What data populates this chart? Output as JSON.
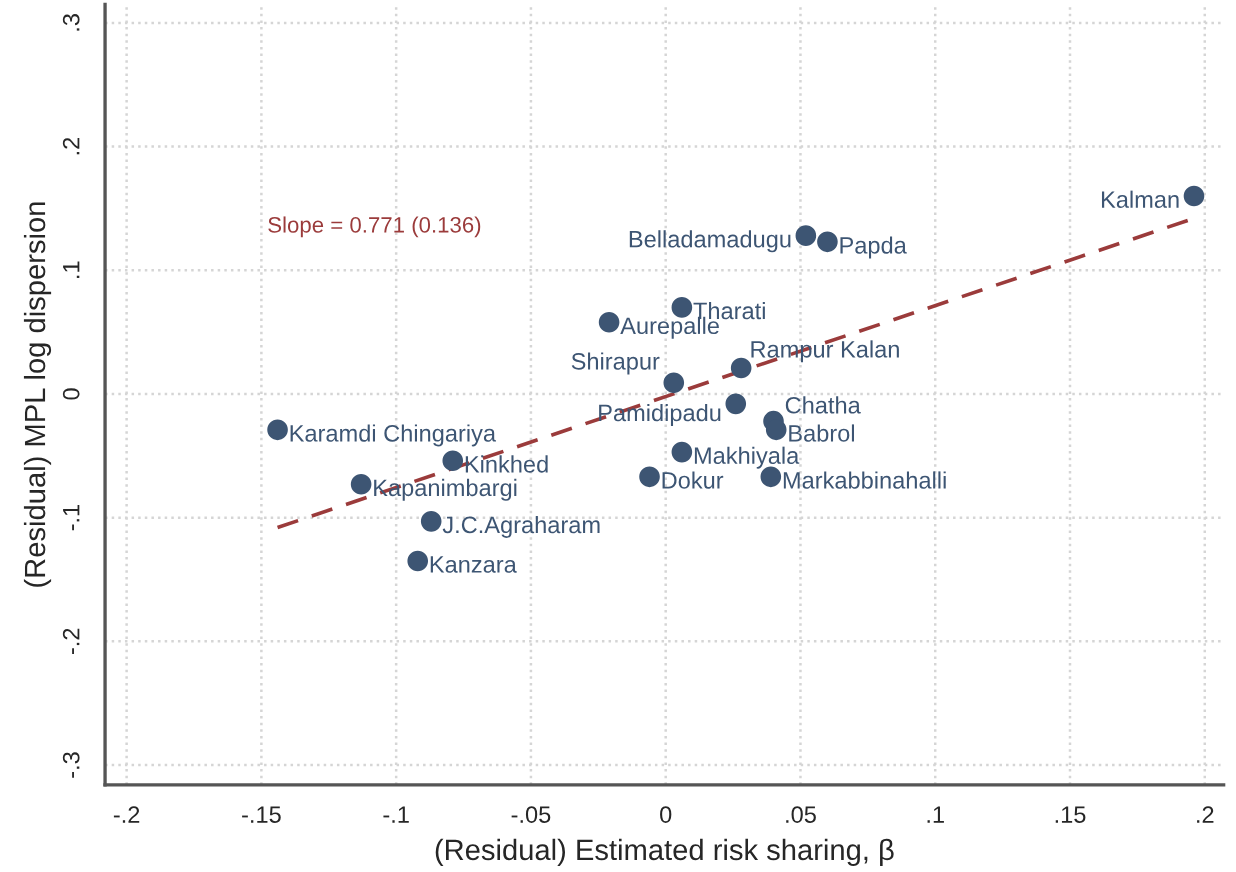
{
  "chart_data": {
    "type": "scatter",
    "xlabel": "(Residual) Estimated risk sharing, β",
    "ylabel": "(Residual) MPL log dispersion",
    "xlim": [
      -0.208,
      0.207
    ],
    "ylim": [
      -0.316,
      0.315
    ],
    "xticks": [
      {
        "value": -0.2,
        "label": "-.2"
      },
      {
        "value": -0.15,
        "label": "-.15"
      },
      {
        "value": -0.1,
        "label": "-.1"
      },
      {
        "value": -0.05,
        "label": "-.05"
      },
      {
        "value": 0,
        "label": "0"
      },
      {
        "value": 0.05,
        "label": ".05"
      },
      {
        "value": 0.1,
        "label": ".1"
      },
      {
        "value": 0.15,
        "label": ".15"
      },
      {
        "value": 0.2,
        "label": ".2"
      }
    ],
    "yticks": [
      {
        "value": -0.3,
        "label": "-.3"
      },
      {
        "value": -0.2,
        "label": "-.2"
      },
      {
        "value": -0.1,
        "label": "-.1"
      },
      {
        "value": 0,
        "label": "0"
      },
      {
        "value": 0.1,
        "label": ".1"
      },
      {
        "value": 0.2,
        "label": ".2"
      },
      {
        "value": 0.3,
        "label": ".3"
      }
    ],
    "grid": true,
    "marker": "circle",
    "series": [
      {
        "color": "#3d5573",
        "x": [
          0.196,
          0.052,
          0.06,
          0.006,
          -0.021,
          0.003,
          0.028,
          0.026,
          0.04,
          0.041,
          0.006,
          -0.006,
          0.039,
          -0.144,
          -0.079,
          -0.113,
          -0.087,
          -0.092
        ],
        "values": [
          0.16,
          0.128,
          0.123,
          0.07,
          0.058,
          0.009,
          0.021,
          -0.008,
          -0.022,
          -0.029,
          -0.047,
          -0.067,
          -0.067,
          -0.029,
          -0.054,
          -0.073,
          -0.103,
          -0.135
        ],
        "value_labels": [
          "Kalman",
          "Belladamadugu",
          "Papda",
          "Tharati",
          "Aurepalle",
          "Shirapur",
          "Rampur Kalan",
          "Pamidipadu",
          "Chatha",
          "Babrol",
          "Makhiyala",
          "Dokur",
          "Markabbinahalli",
          "Karamdi Chingariya",
          "Kinkhed",
          "Kapanimbargi",
          "J.C.Agraharam",
          "Kanzara"
        ]
      },
      {
        "type": "line",
        "color": "#9b3b3b",
        "line_style": "dashed",
        "marker": "none",
        "x": [
          -0.144,
          0.196
        ],
        "values": [
          -0.108,
          0.142
        ]
      }
    ],
    "annotations": [
      "Slope = 0.771 (0.136)"
    ]
  }
}
